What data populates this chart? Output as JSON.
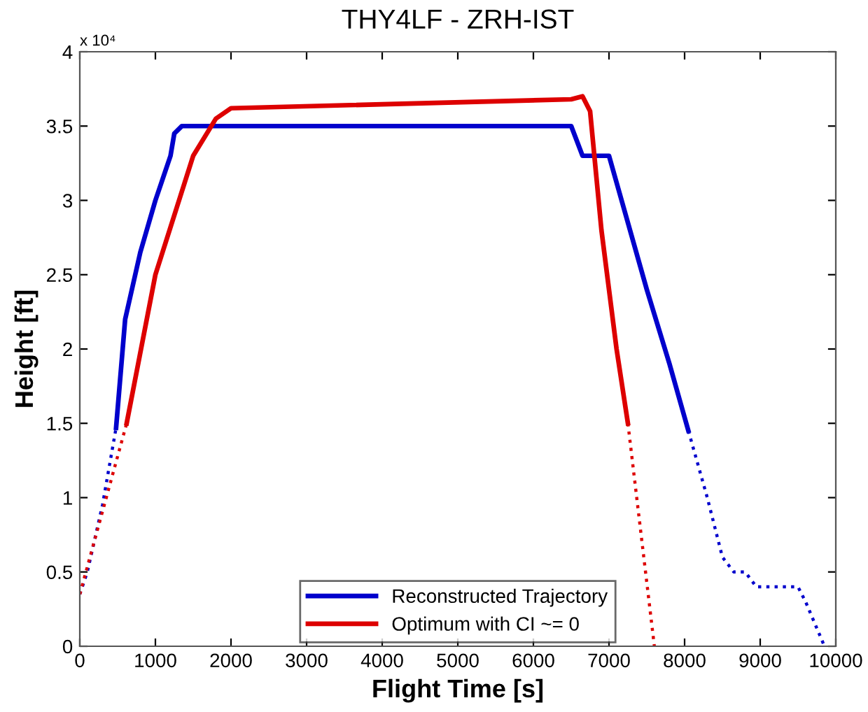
{
  "chart_data": {
    "type": "line",
    "title": "THY4LF - ZRH-IST",
    "xlabel": "Flight Time [s]",
    "ylabel": "Height [ft]",
    "annotations": [
      "x 10⁴"
    ],
    "xlim": [
      0,
      10000
    ],
    "xticks": [
      0,
      1000,
      2000,
      3000,
      4000,
      5000,
      6000,
      7000,
      8000,
      9000,
      10000
    ],
    "ylim": [
      0,
      4
    ],
    "yticks": [
      0,
      0.5,
      1,
      1.5,
      2,
      2.5,
      3,
      3.5,
      4
    ],
    "grid": false,
    "legend": "bottom",
    "marker": "none",
    "series": [
      {
        "name": "Reconstructed Trajectory",
        "color": "#0000cc",
        "line_style": "solid",
        "x": [
          480,
          600,
          800,
          1000,
          1200,
          1250,
          1350,
          6500,
          6650,
          6900,
          7000,
          7500,
          7800,
          8050
        ],
        "values": [
          1.47,
          2.2,
          2.65,
          3.0,
          3.3,
          3.45,
          3.5,
          3.5,
          3.3,
          3.3,
          3.3,
          2.4,
          1.9,
          1.45
        ]
      },
      {
        "name": "Optimum with CI ~= 0",
        "color": "#dd0000",
        "line_style": "solid",
        "x": [
          620,
          1000,
          1500,
          1800,
          2000,
          6500,
          6650,
          6750,
          6900,
          7100,
          7250
        ],
        "values": [
          1.5,
          2.5,
          3.3,
          3.55,
          3.62,
          3.68,
          3.7,
          3.6,
          2.8,
          2.0,
          1.5
        ]
      },
      {
        "color": "#0000cc",
        "line_style": "dotted",
        "x": [
          0,
          100,
          300,
          480
        ],
        "values": [
          0.35,
          0.5,
          0.95,
          1.47
        ]
      },
      {
        "color": "#0000cc",
        "line_style": "dotted",
        "x": [
          8050,
          8300,
          8500,
          8650,
          8800,
          8950,
          9500,
          9600,
          9850
        ],
        "values": [
          1.45,
          1.0,
          0.6,
          0.5,
          0.5,
          0.4,
          0.4,
          0.3,
          0
        ]
      },
      {
        "color": "#dd0000",
        "line_style": "dotted",
        "x": [
          0,
          620
        ],
        "values": [
          0.35,
          1.5
        ]
      },
      {
        "color": "#dd0000",
        "line_style": "dotted",
        "x": [
          7250,
          7600
        ],
        "values": [
          1.5,
          0
        ]
      }
    ]
  }
}
